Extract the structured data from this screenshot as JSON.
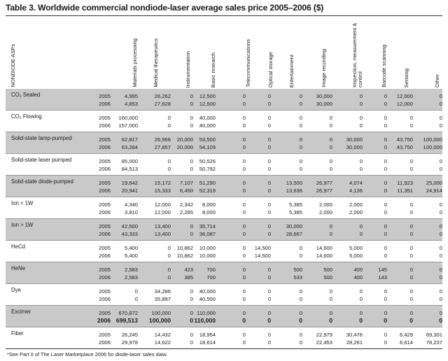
{
  "title": "Table 3. Worldwide commercial nondiode-laser average sales price 2005–2006 ($)",
  "columns": [
    "NONDIODE ASPs",
    "Materials processing",
    "Medical therapeutics",
    "Instrumentation",
    "Basic research",
    "Telecommunications",
    "Optical storage",
    "Entertainment",
    "Image recording",
    "Inspection, measurement & control",
    "Barcode scanning",
    "Sensing",
    "Other"
  ],
  "rows": [
    {
      "label": "CO₂ Sealed",
      "shaded": true,
      "years": [
        {
          "year": "2005",
          "values": [
            "4,995",
            "26,262",
            "0",
            "12,500",
            "0",
            "0",
            "0",
            "30,000",
            "0",
            "0",
            "12,000",
            "0"
          ]
        },
        {
          "year": "2006",
          "values": [
            "4,853",
            "27,628",
            "0",
            "12,500",
            "0",
            "0",
            "0",
            "30,000",
            "0",
            "0",
            "12,000",
            "0"
          ]
        }
      ]
    },
    {
      "label": "CO₂ Flowing",
      "shaded": false,
      "years": [
        {
          "year": "2005",
          "values": [
            "160,000",
            "0",
            "0",
            "40,000",
            "0",
            "0",
            "0",
            "0",
            "0",
            "0",
            "0",
            "0"
          ]
        },
        {
          "year": "2006",
          "values": [
            "157,000",
            "0",
            "0",
            "40,000",
            "0",
            "0",
            "0",
            "0",
            "0",
            "0",
            "0",
            "0"
          ]
        }
      ]
    },
    {
      "label": "Solid-state lamp-pumped",
      "shaded": true,
      "years": [
        {
          "year": "2005",
          "values": [
            "62,817",
            "26,966",
            "20,000",
            "53,500",
            "0",
            "0",
            "0",
            "0",
            "30,000",
            "0",
            "43,750",
            "100,000"
          ]
        },
        {
          "year": "2006",
          "values": [
            "63,284",
            "27,857",
            "20,000",
            "54,109",
            "0",
            "0",
            "0",
            "0",
            "30,000",
            "0",
            "43,750",
            "100,000"
          ]
        }
      ]
    },
    {
      "label": "Solid-state laser pumped",
      "shaded": false,
      "years": [
        {
          "year": "2005",
          "values": [
            "85,000",
            "0",
            "0",
            "50,526",
            "0",
            "0",
            "0",
            "0",
            "0",
            "0",
            "0",
            "0"
          ]
        },
        {
          "year": "2006",
          "values": [
            "84,513",
            "0",
            "0",
            "50,792",
            "0",
            "0",
            "0",
            "0",
            "0",
            "0",
            "0",
            "0"
          ]
        }
      ]
    },
    {
      "label": "Solid-state diode-pumped",
      "shaded": true,
      "years": [
        {
          "year": "2005",
          "values": [
            "19,642",
            "15,172",
            "7,107",
            "51,290",
            "0",
            "0",
            "13,500",
            "26,977",
            "4,074",
            "0",
            "11,923",
            "25,000"
          ]
        },
        {
          "year": "2006",
          "values": [
            "20,941",
            "15,333",
            "6,450",
            "52,319",
            "0",
            "0",
            "13,636",
            "26,977",
            "4,136",
            "0",
            "11,351",
            "24,914"
          ]
        }
      ]
    },
    {
      "label": "Ion < 1W",
      "shaded": false,
      "years": [
        {
          "year": "2005",
          "values": [
            "4,340",
            "12,000",
            "2,342",
            "8,000",
            "0",
            "0",
            "5,385",
            "2,000",
            "2,000",
            "0",
            "0",
            "0"
          ]
        },
        {
          "year": "2006",
          "values": [
            "3,810",
            "12,000",
            "2,265",
            "8,000",
            "0",
            "0",
            "5,385",
            "2,000",
            "2,000",
            "0",
            "0",
            "0"
          ]
        }
      ]
    },
    {
      "label": "Ion > 1W",
      "shaded": true,
      "years": [
        {
          "year": "2005",
          "values": [
            "42,500",
            "13,400",
            "0",
            "35,714",
            "0",
            "0",
            "30,000",
            "0",
            "0",
            "0",
            "0",
            "0"
          ]
        },
        {
          "year": "2006",
          "values": [
            "43,333",
            "13,400",
            "0",
            "36,087",
            "0",
            "0",
            "28,667",
            "0",
            "0",
            "0",
            "0",
            "0"
          ]
        }
      ]
    },
    {
      "label": "HeCd",
      "shaded": false,
      "years": [
        {
          "year": "2005",
          "values": [
            "5,400",
            "0",
            "10,862",
            "10,000",
            "0",
            "14,500",
            "0",
            "14,600",
            "5,000",
            "0",
            "0",
            "0"
          ]
        },
        {
          "year": "2006",
          "values": [
            "5,400",
            "0",
            "10,862",
            "10,000",
            "0",
            "14,500",
            "0",
            "14,600",
            "5,000",
            "0",
            "0",
            "0"
          ]
        }
      ]
    },
    {
      "label": "HeNe",
      "shaded": true,
      "years": [
        {
          "year": "2005",
          "values": [
            "2,583",
            "0",
            "423",
            "700",
            "0",
            "0",
            "500",
            "500",
            "400",
            "145",
            "0",
            "0"
          ]
        },
        {
          "year": "2006",
          "values": [
            "2,583",
            "0",
            "385",
            "700",
            "0",
            "0",
            "533",
            "500",
            "400",
            "143",
            "0",
            "0"
          ]
        }
      ]
    },
    {
      "label": "Dye",
      "shaded": false,
      "years": [
        {
          "year": "2005",
          "values": [
            "0",
            "34,286",
            "0",
            "40,000",
            "0",
            "0",
            "0",
            "0",
            "0",
            "0",
            "0",
            "0"
          ]
        },
        {
          "year": "2006",
          "values": [
            "0",
            "35,897",
            "0",
            "40,500",
            "0",
            "0",
            "0",
            "0",
            "0",
            "0",
            "0",
            "0"
          ]
        }
      ]
    },
    {
      "label": "Excimer",
      "shaded": true,
      "years": [
        {
          "year": "2005",
          "values": [
            "670,872",
            "100,000",
            "0",
            "110,000",
            "0",
            "0",
            "0",
            "0",
            "0",
            "0",
            "0",
            "0"
          ]
        },
        {
          "year": "2006",
          "values": [
            "699,513",
            "100,000",
            "0",
            "110,000",
            "0",
            "0",
            "0",
            "0",
            "0",
            "0",
            "0",
            "0"
          ],
          "bold": true
        }
      ]
    },
    {
      "label": "Fiber",
      "shaded": false,
      "years": [
        {
          "year": "2005",
          "values": [
            "26,245",
            "14,432",
            "0",
            "18,954",
            "0",
            "0",
            "0",
            "22,979",
            "30,476",
            "0",
            "6,429",
            "69,301"
          ]
        },
        {
          "year": "2006",
          "values": [
            "29,978",
            "14,622",
            "0",
            "18,614",
            "0",
            "0",
            "0",
            "22,453",
            "28,261",
            "0",
            "6,614",
            "78,237"
          ]
        }
      ]
    }
  ],
  "footnote": "*See Part II of The Laser Marketplace 2006 for diode-laser sales data."
}
